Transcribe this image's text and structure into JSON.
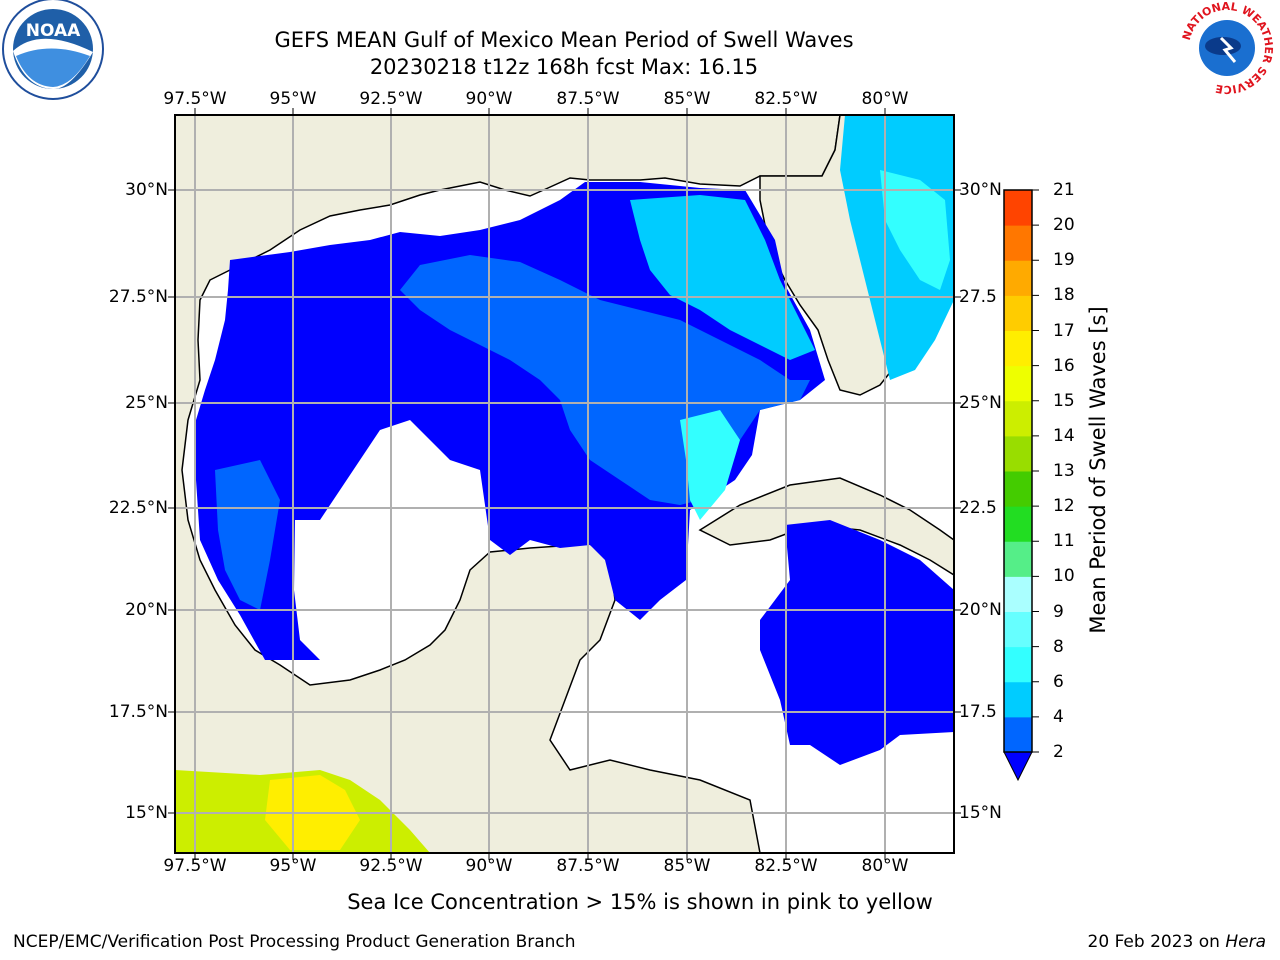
{
  "header": {
    "title_line1": "GEFS MEAN Gulf of Mexico Mean Period of Swell Waves",
    "title_line2": "20230218 t12z 168h fcst   Max: 16.15"
  },
  "axes": {
    "lon_labels": [
      "97.5°W",
      "95°W",
      "92.5°W",
      "90°W",
      "87.5°W",
      "85°W",
      "82.5°W",
      "80°W"
    ],
    "lat_labels_left": [
      "30°N",
      "27.5°N",
      "25°N",
      "22.5°N",
      "20°N",
      "17.5°N",
      "15°N"
    ],
    "lat_labels_right": [
      "30°N",
      "27.5",
      "25°N",
      "22.5",
      "20°N",
      "17.5",
      "15°N"
    ]
  },
  "colorbar": {
    "title": "Mean Period of Swell Waves [s]",
    "ticks": [
      "2",
      "4",
      "6",
      "8",
      "9",
      "10",
      "11",
      "12",
      "13",
      "14",
      "15",
      "16",
      "17",
      "18",
      "19",
      "20",
      "21"
    ],
    "colors": [
      "#0066ff",
      "#00ccff",
      "#33ffff",
      "#66ffff",
      "#aaffff",
      "#55ee88",
      "#22dd22",
      "#44cc00",
      "#99dd00",
      "#ccee00",
      "#eeff00",
      "#ffee00",
      "#ffcc00",
      "#ffaa00",
      "#ff7700",
      "#ff4400",
      "#ff1100"
    ],
    "under_color": "#0000ff"
  },
  "map": {
    "land_color": "#efeedd",
    "ocean_color": "#ffffff",
    "grid_color": "#b0b0b0"
  },
  "logos": {
    "left_text": "NOAA",
    "right_ring": "NATIONAL WEATHER SERVICE"
  },
  "subtitle": "Sea Ice Concentration > 15% is shown in pink to yellow",
  "footer": {
    "left": "NCEP/EMC/Verification Post Processing Product Generation Branch",
    "right_date": "20 Feb 2023 on ",
    "right_machine": "Hera"
  }
}
